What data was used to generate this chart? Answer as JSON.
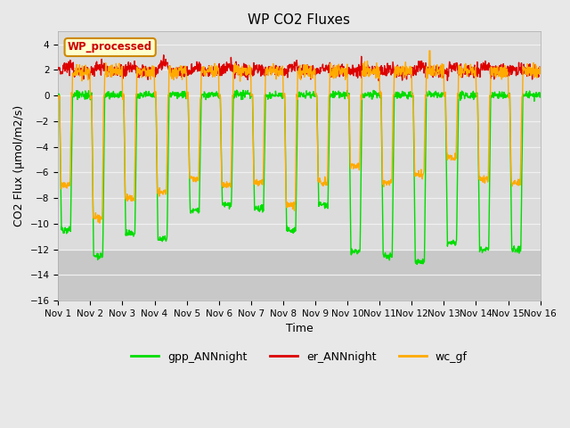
{
  "title": "WP CO2 Fluxes",
  "xlabel": "Time",
  "ylabel": "CO2 Flux (μmol/m2/s)",
  "ylim": [
    -16,
    5
  ],
  "yticks": [
    -16,
    -14,
    -12,
    -10,
    -8,
    -6,
    -4,
    -2,
    0,
    2,
    4
  ],
  "num_days": 15,
  "points_per_day": 96,
  "fig_bg": "#e8e8e8",
  "plot_bg": "#dcdcdc",
  "dark_bg": "#c8c8c8",
  "grid_color": "#f0f0f0",
  "legend_label": "WP_processed",
  "legend_bg": "#ffffcc",
  "legend_border": "#cc8800",
  "series": [
    {
      "name": "gpp_ANNnight",
      "color": "#00dd00",
      "lw": 1.0
    },
    {
      "name": "er_ANNnight",
      "color": "#dd0000",
      "lw": 1.0
    },
    {
      "name": "wc_gf",
      "color": "#ffaa00",
      "lw": 1.0
    }
  ],
  "seed": 42,
  "xtick_labels": [
    "Nov 1",
    "Nov 2",
    "Nov 3",
    "Nov 4",
    "Nov 5",
    "Nov 6",
    "Nov 7",
    "Nov 8",
    "Nov 9",
    "Nov 10",
    "Nov 11",
    "Nov 12",
    "Nov 13",
    "Nov 14",
    "Nov 15",
    "Nov 16"
  ]
}
